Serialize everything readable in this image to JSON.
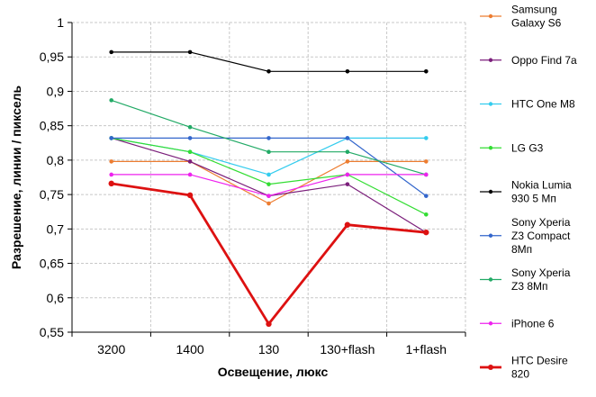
{
  "chart_data": {
    "type": "line",
    "title": "",
    "xlabel": "Освещение,  люкс",
    "ylabel": "Разрешение,  линии  / пиксель",
    "categories": [
      "3200",
      "1400",
      "130",
      "130+flash",
      "1+flash"
    ],
    "ylim": [
      0.55,
      1
    ],
    "yticks": [
      0.55,
      0.6,
      0.65,
      0.7,
      0.75,
      0.8,
      0.85,
      0.9,
      0.95,
      1
    ],
    "ytick_labels": [
      "0,55",
      "0,6",
      "0,65",
      "0,7",
      "0,75",
      "0,8",
      "0,85",
      "0,9",
      "0,95",
      "1"
    ],
    "grid": true,
    "legend_position": "right",
    "series": [
      {
        "name": "Samsung Galaxy S6",
        "legend_lines": [
          "Samsung",
          "Galaxy S6"
        ],
        "color": "#ED7D31",
        "width": 1.2,
        "values": [
          0.798,
          0.798,
          0.737,
          0.798,
          0.798
        ]
      },
      {
        "name": "Oppo Find 7a",
        "legend_lines": [
          "Oppo Find 7a"
        ],
        "color": "#7B1F7B",
        "width": 1.2,
        "values": [
          0.832,
          0.798,
          0.748,
          0.765,
          0.695
        ]
      },
      {
        "name": "HTC One M8",
        "legend_lines": [
          "HTC One M8"
        ],
        "color": "#33CCEE",
        "width": 1.2,
        "values": [
          0.832,
          0.812,
          0.779,
          0.832,
          0.832
        ]
      },
      {
        "name": "LG G3",
        "legend_lines": [
          "LG G3"
        ],
        "color": "#33DD33",
        "width": 1.2,
        "values": [
          0.832,
          0.812,
          0.765,
          0.779,
          0.721
        ]
      },
      {
        "name": "Nokia Lumia 930 5 Мп",
        "legend_lines": [
          "Nokia Lumia",
          "930 5 Мп"
        ],
        "color": "#000000",
        "width": 1.2,
        "values": [
          0.957,
          0.957,
          0.929,
          0.929,
          0.929
        ]
      },
      {
        "name": "Sony Xperia Z3 Compact 8Мп",
        "legend_lines": [
          "Sony Xperia",
          "Z3 Compact",
          "8Мп"
        ],
        "color": "#3366CC",
        "width": 1.2,
        "values": [
          0.832,
          0.832,
          0.832,
          0.832,
          0.748
        ]
      },
      {
        "name": "Sony Xperia Z3 8Мп",
        "legend_lines": [
          "Sony Xperia",
          "Z3 8Мп"
        ],
        "color": "#22AA66",
        "width": 1.2,
        "values": [
          0.887,
          0.848,
          0.812,
          0.812,
          0.779
        ]
      },
      {
        "name": "iPhone 6",
        "legend_lines": [
          "iPhone 6"
        ],
        "color": "#EE22EE",
        "width": 1.2,
        "values": [
          0.779,
          0.779,
          0.748,
          0.779,
          0.779
        ]
      },
      {
        "name": "HTC Desire 820",
        "legend_lines": [
          "HTC Desire",
          "820"
        ],
        "color": "#DD1111",
        "width": 2.8,
        "values": [
          0.766,
          0.749,
          0.562,
          0.706,
          0.695
        ]
      }
    ]
  }
}
